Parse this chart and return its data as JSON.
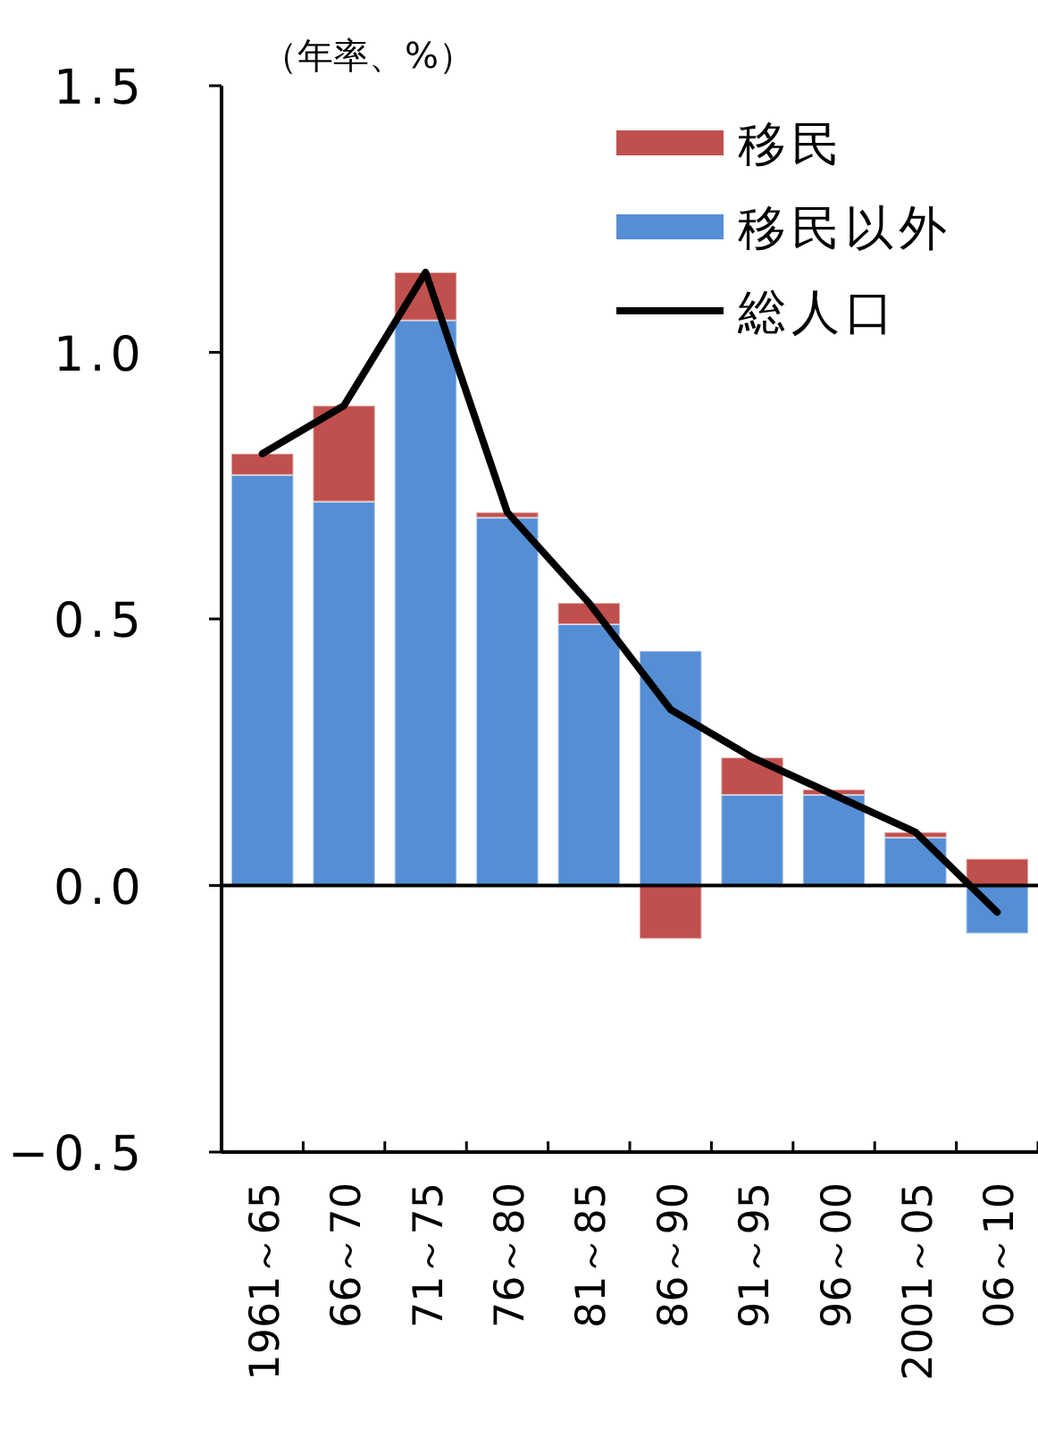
{
  "chart_data": {
    "type": "bar",
    "stacked": true,
    "ylabel": "（年率、%）",
    "categories": [
      "1961～65",
      "66～70",
      "71～75",
      "76～80",
      "81～85",
      "86～90",
      "91～95",
      "96～00",
      "2001～05",
      "06～10"
    ],
    "series": [
      {
        "name": "移民以外",
        "color": "#558ed5",
        "values": [
          0.77,
          0.72,
          1.06,
          0.69,
          0.49,
          0.44,
          0.17,
          0.17,
          0.09,
          -0.09
        ]
      },
      {
        "name": "移民",
        "color": "#c0504d",
        "values": [
          0.04,
          0.18,
          0.09,
          0.01,
          0.04,
          -0.1,
          0.07,
          0.01,
          0.01,
          0.05
        ]
      },
      {
        "name": "総人口",
        "type": "line",
        "color": "#000000",
        "values": [
          0.81,
          0.9,
          1.15,
          0.7,
          0.53,
          0.33,
          0.24,
          0.17,
          0.1,
          -0.05
        ]
      }
    ],
    "ylim": [
      -0.5,
      1.5
    ],
    "yticks": [
      {
        "value": -0.5,
        "label": "−0.5"
      },
      {
        "value": 0,
        "label": "0.0"
      },
      0.5,
      {
        "value": 1,
        "label": "1.0"
      },
      1.5
    ],
    "legend": "top right"
  }
}
